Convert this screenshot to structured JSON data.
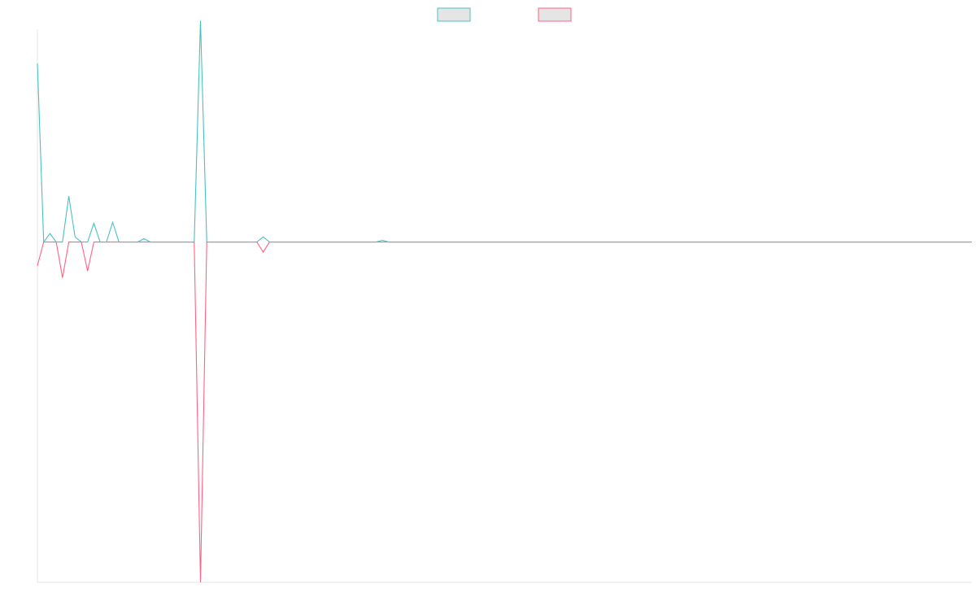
{
  "chart_data": {
    "type": "line",
    "title": "",
    "xlabel": "",
    "ylabel": "",
    "grid": false,
    "legend_position": "top-center",
    "ylim": [
      -100,
      62.5
    ],
    "x": [
      0,
      1,
      2,
      3,
      4,
      5,
      6,
      7,
      8,
      9,
      10,
      11,
      12,
      13,
      14,
      15,
      16,
      17,
      18,
      19,
      20,
      21,
      22,
      23,
      24,
      25,
      26,
      27,
      28,
      29,
      30,
      31,
      32,
      33,
      34,
      35,
      36,
      37,
      38,
      39,
      40,
      41,
      42,
      43,
      44,
      45,
      46,
      47,
      48,
      49,
      50,
      51,
      52,
      53,
      54,
      55,
      56,
      57,
      58,
      59,
      60,
      61,
      62,
      63,
      64,
      65,
      66,
      67,
      68,
      69,
      70,
      71,
      72,
      73,
      74,
      75,
      76,
      77,
      78,
      79,
      80,
      81,
      82,
      83,
      84,
      85,
      86,
      87,
      88,
      89,
      90,
      91,
      92,
      93,
      94,
      95,
      96,
      97,
      98,
      99,
      100,
      101,
      102,
      103,
      104,
      105,
      106,
      107,
      108,
      109,
      110,
      111,
      112,
      113,
      114,
      115,
      116,
      117,
      118,
      119,
      120,
      121,
      122,
      123,
      124,
      125,
      126,
      127,
      128,
      129,
      130,
      131,
      132,
      133,
      134,
      135,
      136,
      137,
      138,
      139,
      140,
      141,
      142,
      143,
      144,
      145,
      146,
      147,
      148,
      149
    ],
    "series": [
      {
        "name": "",
        "color": "#4bc0c0",
        "values": [
          52.5,
          0,
          2.5,
          0,
          0,
          13.5,
          1.5,
          0,
          0,
          5.5,
          0,
          0,
          5.8,
          0,
          0,
          0,
          0,
          1.0,
          0,
          0,
          0,
          0,
          0,
          0,
          0,
          0,
          65,
          0,
          0,
          0,
          0,
          0,
          0,
          0,
          0,
          0,
          1.5,
          0,
          0,
          0,
          0,
          0,
          0,
          0,
          0,
          0,
          0,
          0,
          0,
          0,
          0,
          0,
          0,
          0,
          0,
          0.5,
          0,
          0,
          0,
          0,
          0,
          0,
          0,
          0,
          0,
          0,
          0,
          0,
          0,
          0,
          0,
          0,
          0,
          0,
          0,
          0,
          0,
          0,
          0,
          0,
          0,
          0,
          0,
          0,
          0,
          0,
          0,
          0,
          0,
          0,
          0,
          0,
          0,
          0,
          0,
          0,
          0,
          0,
          0,
          0,
          0,
          0,
          0,
          0,
          0,
          0,
          0,
          0,
          0,
          0,
          0,
          0,
          0,
          0,
          0,
          0,
          0,
          0,
          0,
          0,
          0,
          0,
          0,
          0,
          0,
          0,
          0,
          0,
          0,
          0,
          0,
          0,
          0,
          0,
          0,
          0,
          0,
          0,
          0,
          0,
          0,
          0,
          0,
          0,
          0,
          0,
          0,
          0,
          0,
          0
        ]
      },
      {
        "name": "",
        "color": "#ff6384",
        "values": [
          -7,
          0,
          0,
          0,
          -10.5,
          0,
          0,
          0,
          -8.5,
          0,
          0,
          0,
          0,
          0,
          0,
          0,
          0,
          0,
          0,
          0,
          0,
          0,
          0,
          0,
          0,
          0,
          -100,
          0,
          0,
          0,
          0,
          0,
          0,
          0,
          0,
          0,
          -3,
          0,
          0,
          0,
          0,
          0,
          0,
          0,
          0,
          0,
          0,
          0,
          0,
          0,
          0,
          0,
          0,
          0,
          0,
          0,
          0,
          0,
          0,
          0,
          0,
          0,
          0,
          0,
          0,
          0,
          0,
          0,
          0,
          0,
          0,
          0,
          0,
          0,
          0,
          0,
          0,
          0,
          0,
          0,
          0,
          0,
          0,
          0,
          0,
          0,
          0,
          0,
          0,
          0,
          0,
          0,
          0,
          0,
          0,
          0,
          0,
          0,
          0,
          0,
          0,
          0,
          0,
          0,
          0,
          0,
          0,
          0,
          0,
          0,
          0,
          0,
          0,
          0,
          0,
          0,
          0,
          0,
          0,
          0,
          0,
          0,
          0,
          0,
          0,
          0,
          0,
          0,
          0,
          0,
          0,
          0,
          0,
          0,
          0,
          0,
          0,
          0,
          0,
          0,
          0,
          0,
          0,
          0,
          0,
          0,
          0,
          0,
          0,
          0
        ]
      }
    ]
  }
}
